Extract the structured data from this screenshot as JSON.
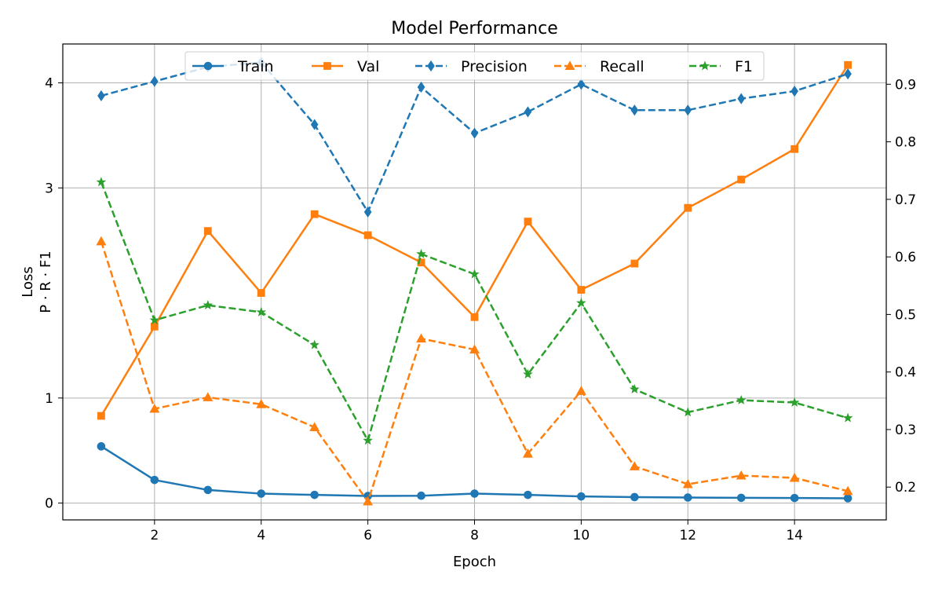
{
  "chart_data": {
    "type": "line",
    "title": "Model Performance",
    "xlabel": "Epoch",
    "ylabel_left": "Loss",
    "ylabel_right": "P · R · F1",
    "grid": true,
    "legend_position": "top-center",
    "x": [
      1,
      2,
      3,
      4,
      5,
      6,
      7,
      8,
      9,
      10,
      11,
      12,
      13,
      14,
      15
    ],
    "x_ticks": [
      2,
      4,
      6,
      8,
      10,
      12,
      14
    ],
    "xlim": [
      0.28,
      15.72
    ],
    "ylim_left": [
      -0.16,
      4.37
    ],
    "y_ticks_left": [
      0,
      1,
      3,
      4
    ],
    "ylim_right": [
      0.143,
      0.97
    ],
    "y_ticks_right": [
      0.2,
      0.3,
      0.4,
      0.5,
      0.6,
      0.7,
      0.8,
      0.9
    ],
    "series": [
      {
        "name": "Train",
        "axis": "left",
        "color": "#1f77b4",
        "dash": "solid",
        "marker": "circle",
        "values": [
          0.54,
          0.22,
          0.125,
          0.09,
          0.078,
          0.068,
          0.07,
          0.09,
          0.078,
          0.063,
          0.057,
          0.053,
          0.05,
          0.048,
          0.046
        ]
      },
      {
        "name": "Val",
        "axis": "left",
        "color": "#ff7f0e",
        "dash": "solid",
        "marker": "square",
        "values": [
          0.83,
          1.68,
          2.59,
          2.0,
          2.75,
          2.55,
          2.29,
          1.77,
          2.68,
          2.03,
          2.28,
          2.81,
          3.08,
          3.37,
          4.17
        ]
      },
      {
        "name": "Precision",
        "axis": "right",
        "color": "#1f77b4",
        "dash": "dashed",
        "marker": "diamond",
        "values": [
          0.88,
          0.905,
          0.93,
          0.938,
          0.83,
          0.678,
          0.895,
          0.815,
          0.852,
          0.9,
          0.855,
          0.855,
          0.875,
          0.888,
          0.918
        ]
      },
      {
        "name": "Recall",
        "axis": "right",
        "color": "#ff7f0e",
        "dash": "dashed",
        "marker": "triangle",
        "values": [
          0.627,
          0.336,
          0.356,
          0.344,
          0.304,
          0.175,
          0.458,
          0.439,
          0.258,
          0.367,
          0.236,
          0.205,
          0.22,
          0.216,
          0.193
        ]
      },
      {
        "name": "F1",
        "axis": "right",
        "color": "#2ca02c",
        "dash": "dashed",
        "marker": "star",
        "values": [
          0.73,
          0.49,
          0.516,
          0.504,
          0.447,
          0.281,
          0.605,
          0.57,
          0.396,
          0.52,
          0.37,
          0.33,
          0.351,
          0.347,
          0.32
        ]
      }
    ]
  }
}
